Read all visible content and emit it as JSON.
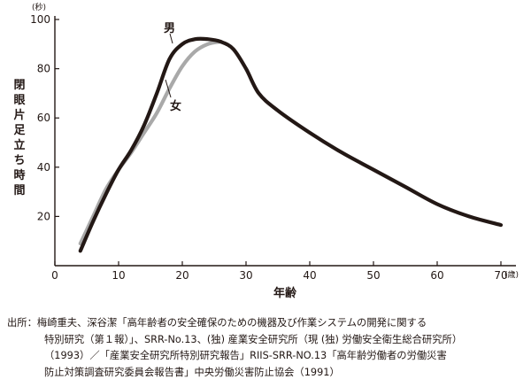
{
  "chart_data": {
    "type": "line",
    "xlabel": "年齢",
    "ylabel": "閉眼片足立ち時間",
    "x_unit": "(歳)",
    "y_unit": "(秒)",
    "xlim": [
      0,
      70
    ],
    "ylim": [
      0,
      100
    ],
    "x_ticks": [
      0,
      10,
      20,
      30,
      40,
      50,
      60,
      70
    ],
    "y_ticks": [
      20,
      40,
      60,
      80,
      100
    ],
    "grid": false,
    "series": [
      {
        "name": "男",
        "color": "#231815",
        "x": [
          4,
          6,
          8,
          10,
          12,
          14,
          16,
          18,
          20,
          22,
          24,
          26,
          28,
          30,
          32,
          35,
          40,
          45,
          50,
          55,
          60,
          65,
          70
        ],
        "y": [
          6,
          18,
          29,
          39,
          47,
          57,
          70,
          84,
          90,
          92,
          92,
          91,
          88,
          80,
          70,
          63,
          54,
          46,
          39,
          32,
          25,
          20,
          16.5
        ]
      },
      {
        "name": "女",
        "color": "#a9a9a9",
        "x": [
          4,
          6,
          8,
          10,
          12,
          14,
          16,
          18,
          20,
          22,
          24,
          26
        ],
        "y": [
          9,
          20,
          31,
          39,
          46,
          54,
          62,
          72,
          81,
          87,
          90,
          91
        ]
      }
    ]
  },
  "source": {
    "lines": [
      "出所：梅崎重夫、深谷潔「高年齢者の安全確保のための機器及び作業システムの開発に関する",
      "特別研究（第１報）」、SRR-No.13、(独) 産業安全研究所（現 (独) 労働安全衛生総合研究所）",
      "（1993）／「産業安全研究所特別研究報告」RIIS-SRR-NO.13「高年齢労働者の労働災害",
      "防止対策調査研究委員会報告書」中央労働災害防止協会（1991）"
    ]
  }
}
